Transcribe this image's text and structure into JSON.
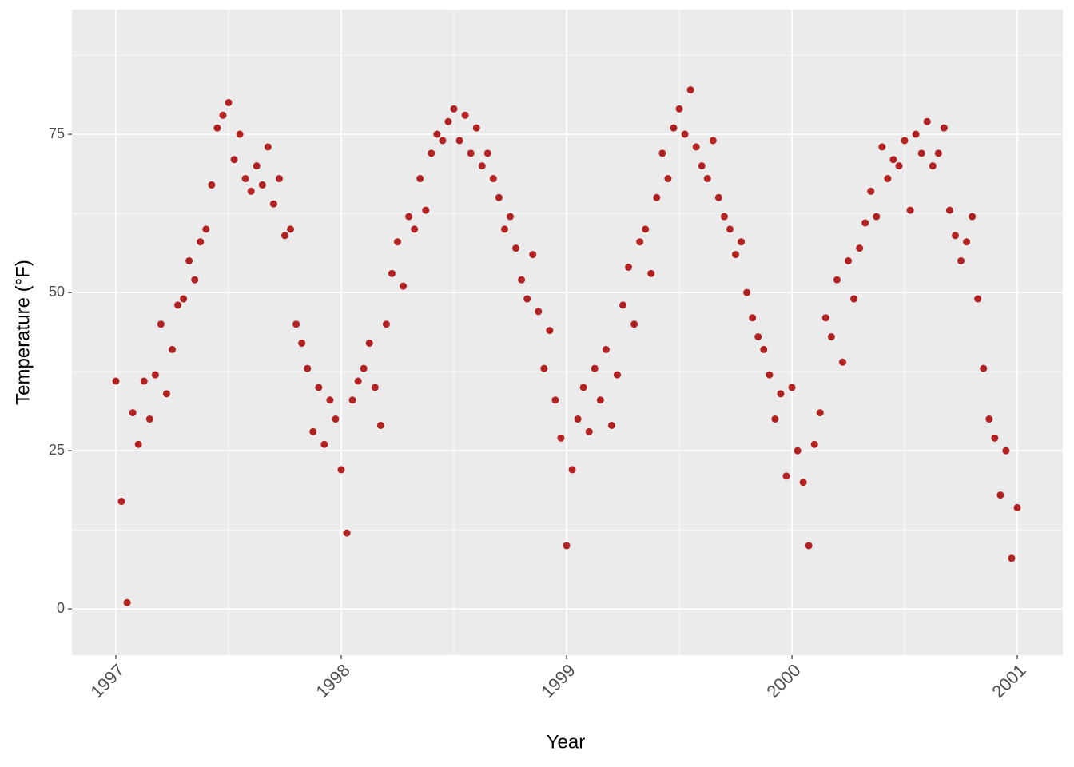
{
  "chart_data": {
    "type": "scatter",
    "x_label": "Year",
    "y_label": "Temperature (°F)",
    "color": "#b22222",
    "grid": true,
    "xlim": [
      1996.805,
      2001.202
    ],
    "ylim": [
      -7.3,
      94.7
    ],
    "xticks": [
      1997,
      1998,
      1999,
      2000,
      2001
    ],
    "yticks": [
      0,
      25,
      50,
      75
    ],
    "x": [
      1997.0,
      1997.025,
      1997.05,
      1997.075,
      1997.1,
      1997.125,
      1997.15,
      1997.175,
      1997.2,
      1997.225,
      1997.25,
      1997.275,
      1997.3,
      1997.325,
      1997.35,
      1997.375,
      1997.4,
      1997.425,
      1997.45,
      1997.475,
      1997.5,
      1997.525,
      1997.55,
      1997.575,
      1997.6,
      1997.625,
      1997.65,
      1997.675,
      1997.7,
      1997.725,
      1997.75,
      1997.775,
      1997.8,
      1997.825,
      1997.85,
      1997.875,
      1997.9,
      1997.925,
      1997.95,
      1997.975,
      1998.0,
      1998.025,
      1998.05,
      1998.075,
      1998.1,
      1998.125,
      1998.15,
      1998.175,
      1998.2,
      1998.225,
      1998.25,
      1998.275,
      1998.3,
      1998.325,
      1998.35,
      1998.375,
      1998.4,
      1998.425,
      1998.45,
      1998.475,
      1998.5,
      1998.525,
      1998.55,
      1998.575,
      1998.6,
      1998.625,
      1998.65,
      1998.675,
      1998.7,
      1998.725,
      1998.75,
      1998.775,
      1998.8,
      1998.825,
      1998.85,
      1998.875,
      1998.9,
      1998.925,
      1998.95,
      1998.975,
      1999.0,
      1999.025,
      1999.05,
      1999.075,
      1999.1,
      1999.125,
      1999.15,
      1999.175,
      1999.2,
      1999.225,
      1999.25,
      1999.275,
      1999.3,
      1999.325,
      1999.35,
      1999.375,
      1999.4,
      1999.425,
      1999.45,
      1999.475,
      1999.5,
      1999.525,
      1999.55,
      1999.575,
      1999.6,
      1999.625,
      1999.65,
      1999.675,
      1999.7,
      1999.725,
      1999.75,
      1999.775,
      1999.8,
      1999.825,
      1999.85,
      1999.875,
      1999.9,
      1999.925,
      1999.95,
      1999.975,
      2000.0,
      2000.025,
      2000.05,
      2000.075,
      2000.1,
      2000.125,
      2000.15,
      2000.175,
      2000.2,
      2000.225,
      2000.25,
      2000.275,
      2000.3,
      2000.325,
      2000.35,
      2000.375,
      2000.4,
      2000.425,
      2000.45,
      2000.475,
      2000.5,
      2000.525,
      2000.55,
      2000.575,
      2000.6,
      2000.625,
      2000.65,
      2000.675,
      2000.7,
      2000.725,
      2000.75,
      2000.775,
      2000.8,
      2000.825,
      2000.85,
      2000.875,
      2000.9,
      2000.925,
      2000.95,
      2000.975,
      2001.0
    ],
    "values": [
      36,
      17,
      1,
      31,
      26,
      36,
      30,
      37,
      45,
      34,
      41,
      48,
      49,
      55,
      52,
      58,
      60,
      67,
      76,
      78,
      80,
      71,
      75,
      68,
      66,
      70,
      67,
      73,
      64,
      68,
      59,
      60,
      45,
      42,
      38,
      28,
      35,
      26,
      33,
      30,
      22,
      12,
      33,
      36,
      38,
      42,
      35,
      29,
      45,
      53,
      58,
      51,
      62,
      60,
      68,
      63,
      72,
      75,
      74,
      77,
      79,
      74,
      78,
      72,
      76,
      70,
      72,
      68,
      65,
      60,
      62,
      57,
      52,
      49,
      56,
      47,
      38,
      44,
      33,
      27,
      10,
      22,
      30,
      35,
      28,
      38,
      33,
      41,
      29,
      37,
      48,
      54,
      45,
      58,
      60,
      53,
      65,
      72,
      68,
      76,
      79,
      75,
      82,
      73,
      70,
      68,
      74,
      65,
      62,
      60,
      56,
      58,
      50,
      46,
      43,
      41,
      37,
      30,
      34,
      21,
      35,
      25,
      20,
      10,
      26,
      31,
      46,
      43,
      52,
      39,
      55,
      49,
      57,
      61,
      66,
      62,
      73,
      68,
      71,
      70,
      74,
      63,
      75,
      72,
      77,
      70,
      72,
      76,
      63,
      59,
      55,
      58,
      62,
      49,
      38,
      30,
      27,
      18,
      25,
      8,
      16
    ]
  }
}
